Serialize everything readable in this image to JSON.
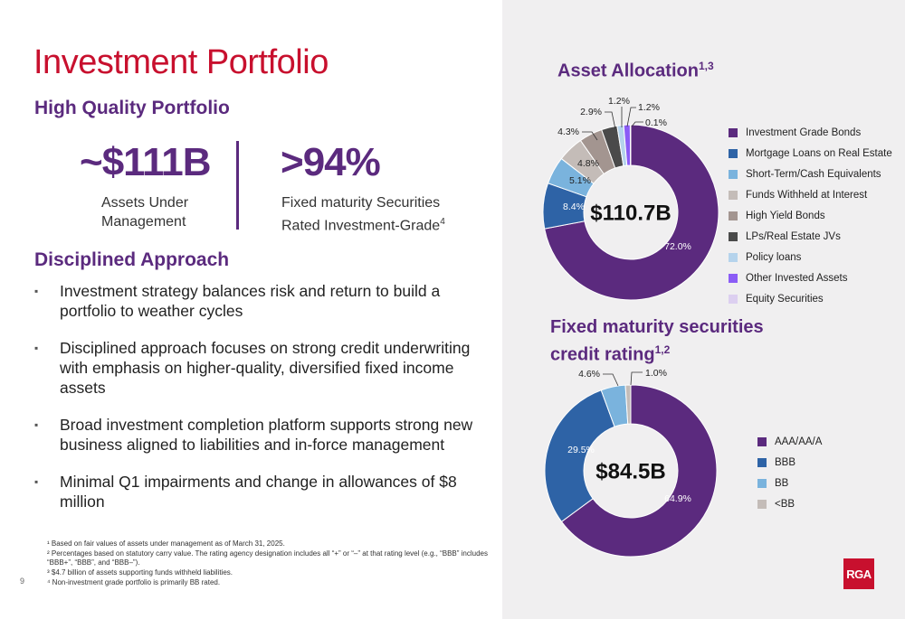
{
  "title": "Investment Portfolio",
  "high_quality": {
    "heading": "High Quality Portfolio",
    "kpi1_value": "~$111B",
    "kpi1_label_line1": "Assets Under",
    "kpi1_label_line2": "Management",
    "kpi2_value": ">94%",
    "kpi2_label_line1": "Fixed maturity Securities",
    "kpi2_label_line2": "Rated Investment-Grade",
    "kpi2_sup": "4"
  },
  "disciplined": {
    "heading": "Disciplined Approach",
    "bullets": [
      "Investment strategy balances risk and return to build a portfolio to weather cycles",
      "Disciplined approach focuses on strong credit underwriting with emphasis on higher-quality, diversified fixed income assets",
      "Broad investment completion platform supports strong new business aligned to liabilities and in-force management",
      "Minimal Q1 impairments and change in allowances of $8 million"
    ]
  },
  "footnotes": [
    "¹ Based on fair values of assets under management as of March 31, 2025.",
    "² Percentages based on statutory carry value. The rating agency designation includes all “+” or “–” at that rating level (e.g., “BBB” includes “BBB+”, “BBB”, and “BBB–”).",
    "³ $4.7 billion of assets supporting funds withheld liabilities.",
    "⁴ Non-investment grade portfolio is primarily BB rated."
  ],
  "page_number": "9",
  "logo_text": "RGA",
  "chart_data": [
    {
      "type": "pie",
      "title": "Asset Allocation",
      "title_sup": "1,3",
      "center_label": "$110.7B",
      "categories": [
        "Investment Grade Bonds",
        "Mortgage Loans on Real Estate",
        "Short-Term/Cash Equivalents",
        "Funds Withheld at Interest",
        "High Yield Bonds",
        "LPs/Real Estate JVs",
        "Policy loans",
        "Other Invested Assets",
        "Equity Securities"
      ],
      "values": [
        72.0,
        8.4,
        5.1,
        4.8,
        4.3,
        2.9,
        1.2,
        1.2,
        0.1
      ],
      "data_labels": [
        "72.0%",
        "8.4%",
        "5.1%",
        "4.8%",
        "4.3%",
        "2.9%",
        "1.2%",
        "1.2%",
        "0.1%"
      ],
      "colors": [
        "#5b2a7e",
        "#2e63a6",
        "#7ab3dd",
        "#c4bcb8",
        "#a39590",
        "#4a4a4a",
        "#b5d3ec",
        "#8b5cf6",
        "#dccff0"
      ],
      "legend_position": "right"
    },
    {
      "type": "pie",
      "title_line1": "Fixed maturity securities",
      "title_line2": "credit rating",
      "title_sup": "1,2",
      "center_label": "$84.5B",
      "categories": [
        "AAA/AA/A",
        "BBB",
        "BB",
        "<BB"
      ],
      "values": [
        64.9,
        29.5,
        4.6,
        1.0
      ],
      "data_labels": [
        "64.9%",
        "29.5%",
        "4.6%",
        "1.0%"
      ],
      "colors": [
        "#5b2a7e",
        "#2e63a6",
        "#7ab3dd",
        "#c4bcb8"
      ],
      "legend_position": "right"
    }
  ]
}
